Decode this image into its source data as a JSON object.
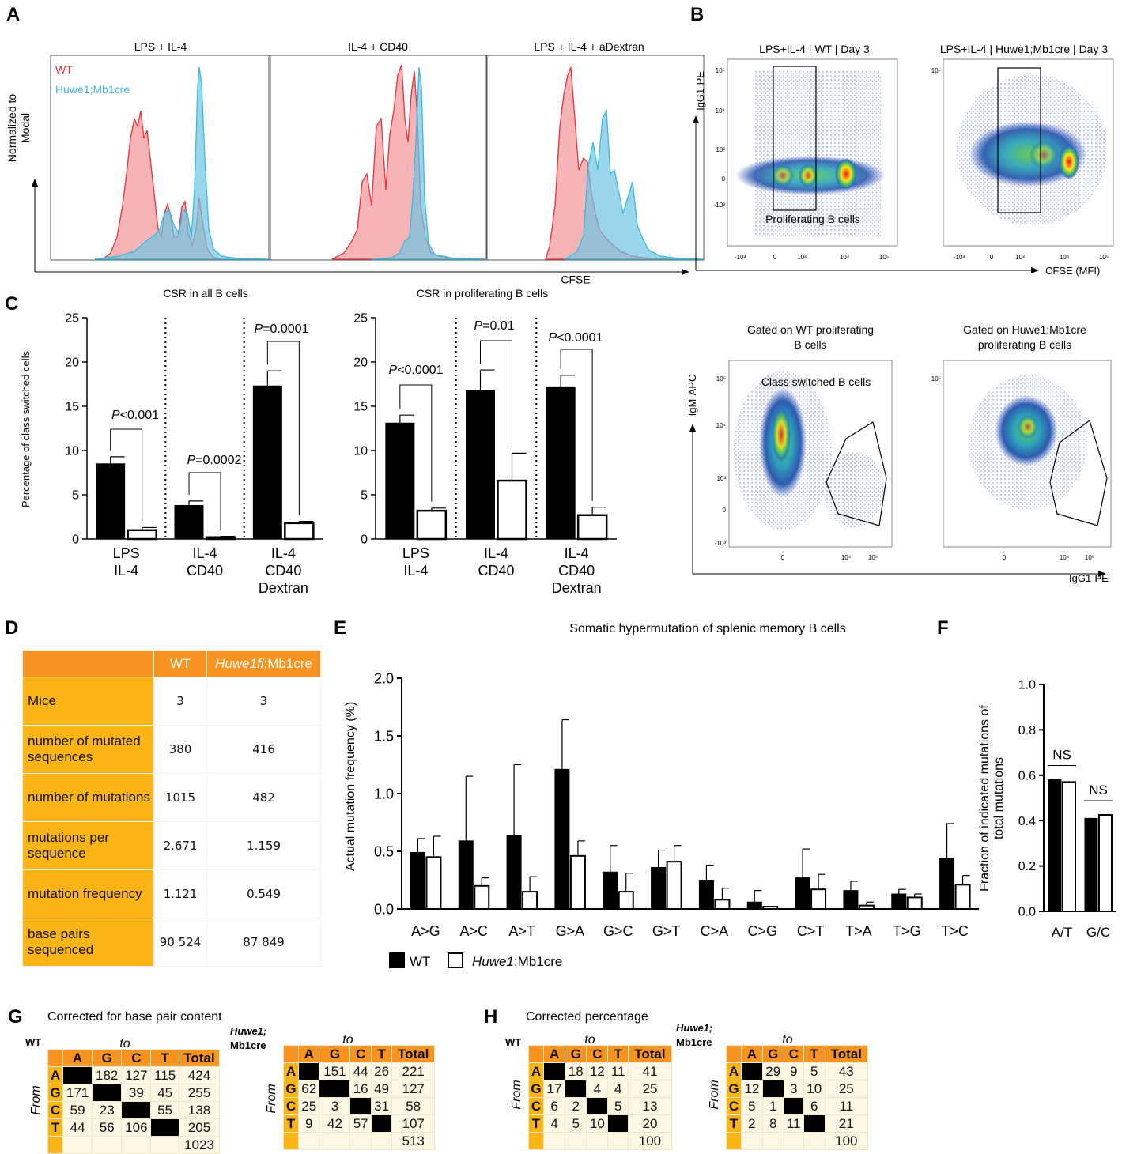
{
  "panel_letters": {
    "A": "A",
    "B": "B",
    "C": "C",
    "D": "D",
    "E": "E",
    "F": "F",
    "G": "G",
    "H": "H"
  },
  "colors": {
    "wt": "#e8303a",
    "huwe": "#38b9e3",
    "orange": "#f7931e",
    "yellow": "#fbb416"
  },
  "panel_a": {
    "titles": [
      "LPS + IL-4",
      "IL-4 + CD40",
      "LPS + IL-4 + aDextran"
    ],
    "ylabel_line1": "Normalized to",
    "ylabel_line2": "Modal",
    "xlabel": "CFSE",
    "legend": {
      "wt": "WT",
      "huwe": "Huwe1;Mb1cre"
    }
  },
  "panel_b": {
    "titles": [
      "LPS+IL-4 | WT | Day 3",
      "LPS+IL-4 | Huwe1;Mb1cre | Day 3"
    ],
    "ylabel": "IgG1-PE",
    "xlabel": "CFSE (MFI)",
    "gate_label": "Proliferating B cells",
    "ticks_y": [
      "10⁵",
      "10⁴",
      "10³",
      "0",
      "-10³"
    ],
    "ticks_x": [
      "-10³",
      "0",
      "10³",
      "10⁴",
      "10⁵"
    ],
    "lower_titles_1": [
      "Gated on WT proliferating",
      "B cells"
    ],
    "lower_titles_2": [
      "Gated on Huwe1;Mb1cre",
      "proliferating B cells"
    ],
    "lower_ylabel": "IgM-APC",
    "lower_xlabel": "IgG1-PE",
    "lower_gate_label": "Class switched B cells",
    "lower_ticks_y": [
      "10⁵",
      "10⁴",
      "10³",
      "0",
      "-10³"
    ],
    "lower_ticks_x": [
      "0",
      "10⁴",
      "10⁵"
    ]
  },
  "chart_data": [
    {
      "id": "C1",
      "type": "bar",
      "title": "CSR in all B cells",
      "ylabel": "Percentage of class switched cells",
      "ylim": [
        0,
        25
      ],
      "yticks": [
        0,
        5,
        10,
        15,
        20,
        25
      ],
      "categories": [
        [
          "LPS",
          "IL-4"
        ],
        [
          "IL-4",
          "CD40"
        ],
        [
          "IL-4",
          "CD40",
          "Dextran"
        ]
      ],
      "series": [
        {
          "name": "WT",
          "values": [
            8.5,
            3.8,
            17.3
          ],
          "errors": [
            0.8,
            0.5,
            1.7
          ]
        },
        {
          "name": "Huwe1;Mb1cre",
          "values": [
            1.0,
            0.2,
            1.8
          ],
          "errors": [
            0.3,
            0.1,
            0.2
          ]
        }
      ],
      "pvalues": [
        {
          "label": "P",
          "value": "<0.001"
        },
        {
          "label": "P",
          "value": "=0.0002"
        },
        {
          "label": "P",
          "value": "=0.0001"
        }
      ]
    },
    {
      "id": "C2",
      "type": "bar",
      "title": "CSR in proliferating B cells",
      "ylim": [
        0,
        25
      ],
      "yticks": [
        0,
        5,
        10,
        15,
        20,
        25
      ],
      "categories": [
        [
          "LPS",
          "IL-4"
        ],
        [
          "IL-4",
          "CD40"
        ],
        [
          "IL-4",
          "CD40",
          "Dextran"
        ]
      ],
      "series": [
        {
          "name": "WT",
          "values": [
            13.1,
            16.8,
            17.2
          ],
          "errors": [
            0.9,
            2.3,
            1.3
          ]
        },
        {
          "name": "Huwe1;Mb1cre",
          "values": [
            3.2,
            6.6,
            2.7
          ],
          "errors": [
            0.3,
            3.1,
            0.9
          ]
        }
      ],
      "pvalues": [
        {
          "label": "P",
          "value": "<0.0001"
        },
        {
          "label": "P",
          "value": "=0.01"
        },
        {
          "label": "P",
          "value": "<0.0001"
        }
      ]
    },
    {
      "id": "E",
      "type": "bar",
      "title": "Somatic hypermutation of splenic memory B cells",
      "ylabel": "Actual mutation frequency  (%)",
      "ylim": [
        0,
        2.0
      ],
      "yticks": [
        "0.0",
        "0.5",
        "1.0",
        "1.5",
        "2.0"
      ],
      "categories": [
        "A>G",
        "A>C",
        "A>T",
        "G>A",
        "G>C",
        "G>T",
        "C>A",
        "C>G",
        "C>T",
        "T>A",
        "T>G",
        "T>C"
      ],
      "series": [
        {
          "name": "WT",
          "values": [
            0.49,
            0.59,
            0.64,
            1.21,
            0.32,
            0.36,
            0.25,
            0.06,
            0.27,
            0.16,
            0.13,
            0.44
          ],
          "errors": [
            0.12,
            0.56,
            0.61,
            0.43,
            0.23,
            0.15,
            0.13,
            0.1,
            0.25,
            0.08,
            0.04,
            0.3
          ]
        },
        {
          "name": "Huwe1;Mb1cre",
          "values": [
            0.45,
            0.2,
            0.15,
            0.46,
            0.15,
            0.41,
            0.08,
            0.02,
            0.17,
            0.03,
            0.1,
            0.21
          ],
          "errors": [
            0.18,
            0.07,
            0.13,
            0.13,
            0.16,
            0.14,
            0.1,
            0.0,
            0.13,
            0.03,
            0.03,
            0.08
          ]
        }
      ],
      "legend": {
        "wt": "WT",
        "huwe_italic": "Huwe1",
        "huwe_rest": ";Mb1cre"
      }
    },
    {
      "id": "F",
      "type": "bar",
      "ylabel_line1": "Fraction of indicated mutations of",
      "ylabel_line2": "total mutations",
      "ylim": [
        0,
        1.0
      ],
      "yticks": [
        "0.0",
        "0.2",
        "0.4",
        "0.6",
        "0.8",
        "1.0"
      ],
      "categories": [
        "A/T",
        "G/C"
      ],
      "series": [
        {
          "name": "WT",
          "values": [
            0.58,
            0.41
          ]
        },
        {
          "name": "Huwe1;Mb1cre",
          "values": [
            0.57,
            0.425
          ]
        }
      ],
      "significance": [
        "NS",
        "NS"
      ]
    }
  ],
  "panel_d": {
    "header": {
      "blank": "",
      "wt": "WT",
      "huwe_italic": "Huwe1fl",
      "huwe_rest": ";Mb1cre"
    },
    "rows": [
      {
        "label": "Mice",
        "wt": "3",
        "huwe": "3"
      },
      {
        "label": "number of mutated sequences",
        "wt": "380",
        "huwe": "416"
      },
      {
        "label": "number of mutations",
        "wt": "1015",
        "huwe": "482"
      },
      {
        "label": "mutations per sequence",
        "wt": "2.671",
        "huwe": "1.159"
      },
      {
        "label": "mutation frequency",
        "wt": "1.121",
        "huwe": "0.549"
      },
      {
        "label": "base pairs sequenced",
        "wt": "90 524",
        "huwe": "87 849"
      }
    ]
  },
  "panel_g": {
    "title": "Corrected for base pair content",
    "wt_label": "WT",
    "huwe_label_1": "Huwe1;",
    "huwe_label_2": "Mb1cre",
    "to": "to",
    "from": "From",
    "cols": [
      "A",
      "G",
      "C",
      "T",
      "Total"
    ],
    "wt": [
      [
        "A",
        "",
        "182",
        "127",
        "115",
        "424"
      ],
      [
        "G",
        "171",
        "",
        "39",
        "45",
        "255"
      ],
      [
        "C",
        "59",
        "23",
        "",
        "55",
        "138"
      ],
      [
        "T",
        "44",
        "56",
        "106",
        "",
        "205"
      ],
      [
        "",
        "",
        "",
        "",
        "",
        "1023"
      ]
    ],
    "huwe": [
      [
        "A",
        "",
        "151",
        "44",
        "26",
        "221"
      ],
      [
        "G",
        "62",
        "",
        "16",
        "49",
        "127"
      ],
      [
        "C",
        "25",
        "3",
        "",
        "31",
        "58"
      ],
      [
        "T",
        "9",
        "42",
        "57",
        "",
        "107"
      ],
      [
        "",
        "",
        "",
        "",
        "",
        "513"
      ]
    ]
  },
  "panel_h": {
    "title": "Corrected percentage",
    "wt_label": "WT",
    "huwe_label_1": "Huwe1;",
    "huwe_label_2": "Mb1cre",
    "to": "to",
    "from": "From",
    "cols": [
      "A",
      "G",
      "C",
      "T",
      "Total"
    ],
    "wt": [
      [
        "A",
        "",
        "18",
        "12",
        "11",
        "41"
      ],
      [
        "G",
        "17",
        "",
        "4",
        "4",
        "25"
      ],
      [
        "C",
        "6",
        "2",
        "",
        "5",
        "13"
      ],
      [
        "T",
        "4",
        "5",
        "10",
        "",
        "20"
      ],
      [
        "",
        "",
        "",
        "",
        "",
        "100"
      ]
    ],
    "huwe": [
      [
        "A",
        "",
        "29",
        "9",
        "5",
        "43"
      ],
      [
        "G",
        "12",
        "",
        "3",
        "10",
        "25"
      ],
      [
        "C",
        "5",
        "1",
        "",
        "6",
        "11"
      ],
      [
        "T",
        "2",
        "8",
        "11",
        "",
        "21"
      ],
      [
        "",
        "",
        "",
        "",
        "",
        "100"
      ]
    ]
  }
}
